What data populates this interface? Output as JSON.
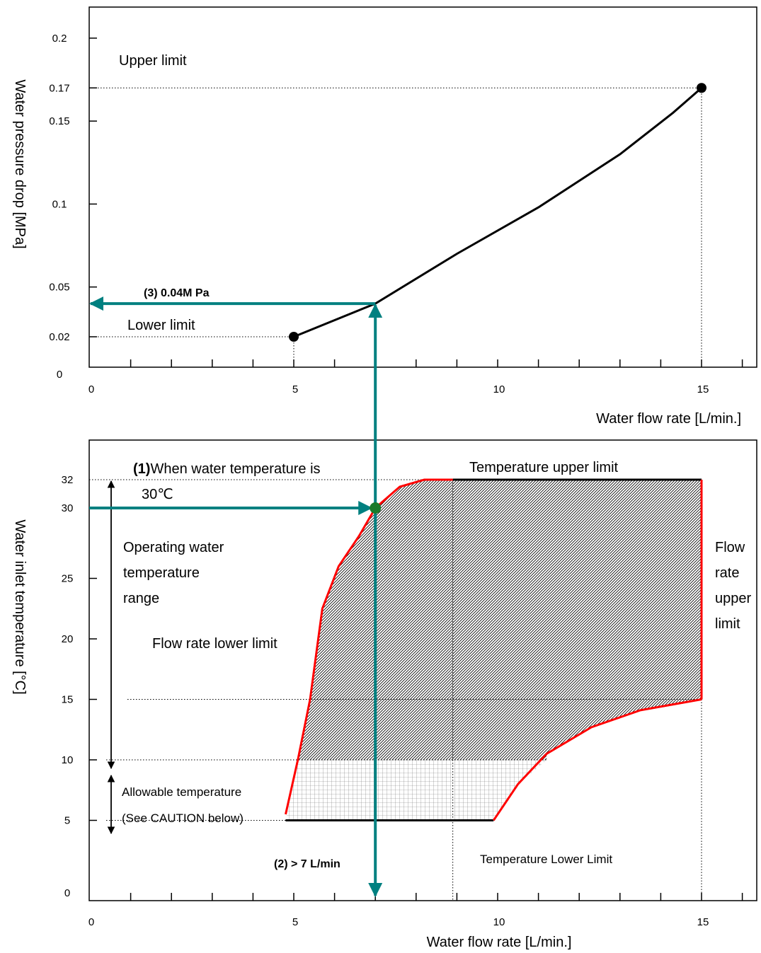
{
  "colors": {
    "curve": "#000000",
    "boundary": "#ff0000",
    "guide_arrow": "#008080",
    "operating_point": "#1a7a2a"
  },
  "chart_data": [
    {
      "type": "line",
      "xlabel": "Water flow rate [L/min.]",
      "ylabel": "Water pressure drop [MPa]",
      "xlim": [
        0,
        16
      ],
      "ylim": [
        0,
        0.2
      ],
      "x_ticks": [
        "0",
        "5",
        "10",
        "15"
      ],
      "y_ticks": [
        "0",
        "0.02",
        "0.05",
        "0.1",
        "0.15",
        "0.17",
        "0.2"
      ],
      "series": [
        {
          "x": [
            5,
            7,
            9,
            11,
            13,
            14.3,
            15
          ],
          "y": [
            0.02,
            0.04,
            0.07,
            0.098,
            0.13,
            0.155,
            0.17
          ]
        }
      ],
      "markers": [
        {
          "x": 5,
          "y": 0.02
        },
        {
          "x": 15,
          "y": 0.17
        }
      ],
      "annotations": {
        "upper": "Upper limit",
        "lower": "Lower limit",
        "pressure_readout": "(3) 0.04M Pa"
      }
    },
    {
      "type": "area",
      "xlabel": "Water flow rate [L/min.]",
      "ylabel": "Water inlet temperature [°C]",
      "xlim": [
        0,
        16
      ],
      "ylim": [
        0,
        35
      ],
      "x_ticks": [
        "0",
        "5",
        "10",
        "15"
      ],
      "y_ticks": [
        "0",
        "5",
        "10",
        "15",
        "20",
        "25",
        "30",
        "32"
      ],
      "flow_rate_lower_limit_curve": {
        "x": [
          4.8,
          5.1,
          5.4,
          5.7,
          6.1,
          6.6,
          7.0,
          7.6,
          8.2,
          8.9
        ],
        "y": [
          5.5,
          10,
          15,
          22.5,
          26,
          28.5,
          30,
          31.5,
          32,
          32
        ]
      },
      "temperature_lower_limit_curve": {
        "x": [
          9.9,
          10.5,
          11.2,
          12.3,
          13.5,
          15
        ],
        "y": [
          5,
          8,
          10.5,
          12.7,
          14.1,
          15
        ]
      },
      "temperature_upper_limit": 32,
      "flow_rate_upper_limit": 15,
      "allowable_band": [
        5,
        10
      ],
      "operating_point": {
        "x": 7,
        "y": 30
      },
      "annotations": {
        "water_temp_prefix": "(1)",
        "water_temp_line1": "When water temperature is",
        "water_temp_line2": "30℃",
        "temp_upper": "Temperature upper limit",
        "operating_range": [
          "Operating water",
          "temperature",
          "range"
        ],
        "flow_upper": [
          "Flow",
          "rate",
          "upper",
          "limit"
        ],
        "flow_lower": "Flow rate lower limit",
        "allowable": [
          "Allowable temperature",
          "(See CAUTION below)"
        ],
        "flow_readout": "(2) > 7 L/min",
        "temp_lower": "Temperature Lower Limit"
      }
    }
  ]
}
